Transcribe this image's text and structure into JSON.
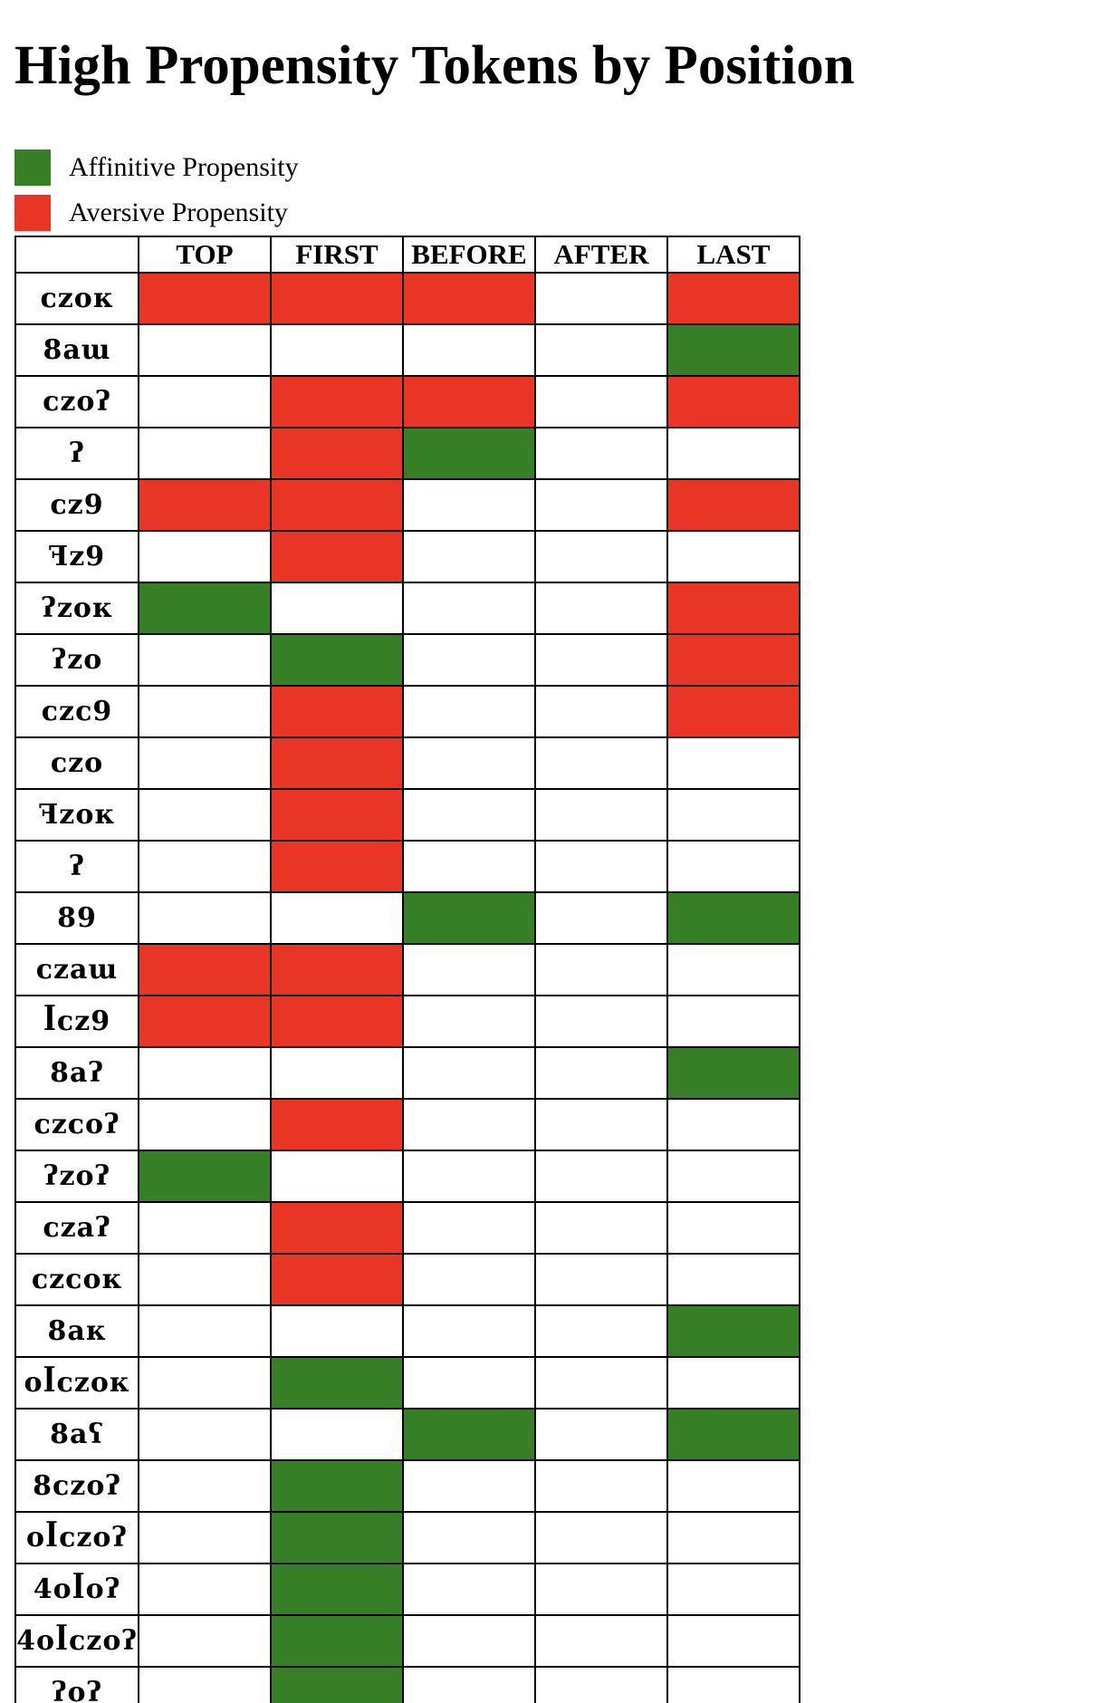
{
  "title": "High Propensity Tokens by Position",
  "colors": {
    "affinitive": "#367f27",
    "aversive": "#e93526",
    "none": "#ffffff"
  },
  "legend": [
    {
      "label": "Affinitive Propensity",
      "type": "affinitive"
    },
    {
      "label": "Aversive Propensity",
      "type": "aversive"
    }
  ],
  "columns": [
    "TOP",
    "FIRST",
    "BEFORE",
    "AFTER",
    "LAST"
  ],
  "rows": [
    {
      "token": "ᴄᴢoᴋ",
      "cells": [
        "aversive",
        "aversive",
        "aversive",
        "none",
        "aversive"
      ]
    },
    {
      "token": "8aɯ",
      "cells": [
        "none",
        "none",
        "none",
        "none",
        "affinitive"
      ]
    },
    {
      "token": "ᴄᴢoʔ",
      "cells": [
        "none",
        "aversive",
        "aversive",
        "none",
        "aversive"
      ]
    },
    {
      "token": "ʔ",
      "cells": [
        "none",
        "aversive",
        "affinitive",
        "none",
        "none"
      ]
    },
    {
      "token": "ᴄᴢ9",
      "cells": [
        "aversive",
        "aversive",
        "none",
        "none",
        "aversive"
      ]
    },
    {
      "token": "ꟻᴢ9",
      "cells": [
        "none",
        "aversive",
        "none",
        "none",
        "none"
      ]
    },
    {
      "token": "ʔᴢoᴋ",
      "cells": [
        "affinitive",
        "none",
        "none",
        "none",
        "aversive"
      ]
    },
    {
      "token": "ʔᴢo",
      "cells": [
        "none",
        "affinitive",
        "none",
        "none",
        "aversive"
      ]
    },
    {
      "token": "ᴄᴢᴄ9",
      "cells": [
        "none",
        "aversive",
        "none",
        "none",
        "aversive"
      ]
    },
    {
      "token": "ᴄᴢo",
      "cells": [
        "none",
        "aversive",
        "none",
        "none",
        "none"
      ]
    },
    {
      "token": "ꟻᴢoᴋ",
      "cells": [
        "none",
        "aversive",
        "none",
        "none",
        "none"
      ]
    },
    {
      "token": "ʔ",
      "cells": [
        "none",
        "aversive",
        "none",
        "none",
        "none"
      ]
    },
    {
      "token": "89",
      "cells": [
        "none",
        "none",
        "affinitive",
        "none",
        "affinitive"
      ]
    },
    {
      "token": "ᴄᴢaɯ",
      "cells": [
        "aversive",
        "aversive",
        "none",
        "none",
        "none"
      ]
    },
    {
      "token": "ꟾᴄᴢ9",
      "cells": [
        "aversive",
        "aversive",
        "none",
        "none",
        "none"
      ]
    },
    {
      "token": "8aʔ",
      "cells": [
        "none",
        "none",
        "none",
        "none",
        "affinitive"
      ]
    },
    {
      "token": "ᴄᴢᴄoʔ",
      "cells": [
        "none",
        "aversive",
        "none",
        "none",
        "none"
      ]
    },
    {
      "token": "ʔᴢoʔ",
      "cells": [
        "affinitive",
        "none",
        "none",
        "none",
        "none"
      ]
    },
    {
      "token": "ᴄᴢaʔ",
      "cells": [
        "none",
        "aversive",
        "none",
        "none",
        "none"
      ]
    },
    {
      "token": "ᴄᴢᴄoᴋ",
      "cells": [
        "none",
        "aversive",
        "none",
        "none",
        "none"
      ]
    },
    {
      "token": "8aᴋ",
      "cells": [
        "none",
        "none",
        "none",
        "none",
        "affinitive"
      ]
    },
    {
      "token": "oꟾᴄᴢoᴋ",
      "cells": [
        "none",
        "affinitive",
        "none",
        "none",
        "none"
      ]
    },
    {
      "token": "8aʕ",
      "cells": [
        "none",
        "none",
        "affinitive",
        "none",
        "affinitive"
      ]
    },
    {
      "token": "8ᴄᴢoʔ",
      "cells": [
        "none",
        "affinitive",
        "none",
        "none",
        "none"
      ]
    },
    {
      "token": "oꟾᴄᴢoʔ",
      "cells": [
        "none",
        "affinitive",
        "none",
        "none",
        "none"
      ]
    },
    {
      "token": "4oꟾoʔ",
      "cells": [
        "none",
        "affinitive",
        "none",
        "none",
        "none"
      ]
    },
    {
      "token": "4oꟾᴄᴢoʔ",
      "cells": [
        "none",
        "affinitive",
        "none",
        "none",
        "none"
      ]
    },
    {
      "token": "ʔoʔ",
      "cells": [
        "none",
        "affinitive",
        "none",
        "none",
        "none"
      ]
    }
  ]
}
